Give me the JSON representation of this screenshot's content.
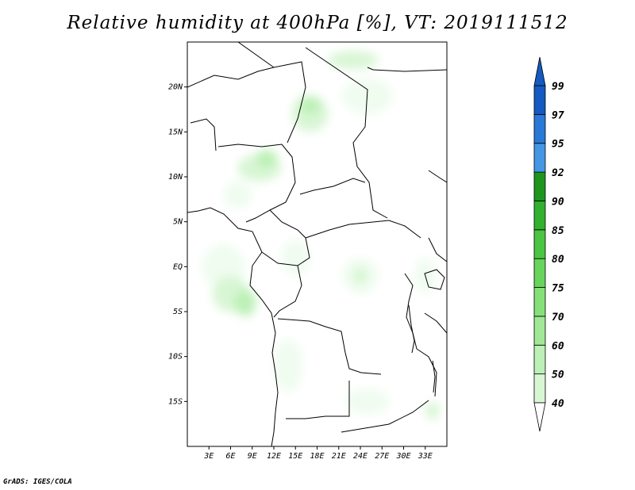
{
  "title": "Relative humidity at 400hPa [%], VT: 2019111512",
  "credit": "GrADS: IGES/COLA",
  "map": {
    "lon_range": [
      0,
      36
    ],
    "lat_range": [
      -20,
      25
    ],
    "lat_ticks": [
      {
        "value": 20,
        "label": "20N"
      },
      {
        "value": 15,
        "label": "15N"
      },
      {
        "value": 10,
        "label": "10N"
      },
      {
        "value": 5,
        "label": "5N"
      },
      {
        "value": 0,
        "label": "EQ"
      },
      {
        "value": -5,
        "label": "5S"
      },
      {
        "value": -10,
        "label": "10S"
      },
      {
        "value": -15,
        "label": "15S"
      }
    ],
    "lon_ticks": [
      {
        "value": 3,
        "label": "3E"
      },
      {
        "value": 6,
        "label": "6E"
      },
      {
        "value": 9,
        "label": "9E"
      },
      {
        "value": 12,
        "label": "12E"
      },
      {
        "value": 15,
        "label": "15E"
      },
      {
        "value": 18,
        "label": "18E"
      },
      {
        "value": 21,
        "label": "21E"
      },
      {
        "value": 24,
        "label": "24E"
      },
      {
        "value": 27,
        "label": "27E"
      },
      {
        "value": 30,
        "label": "30E"
      },
      {
        "value": 33,
        "label": "33E"
      }
    ]
  },
  "colorbar": {
    "levels": [
      "40",
      "50",
      "60",
      "70",
      "75",
      "80",
      "85",
      "90",
      "92",
      "95",
      "97",
      "99"
    ],
    "colors": [
      "#f0fcf0",
      "#d8f6d4",
      "#bcf0b6",
      "#a0e896",
      "#86e07a",
      "#68d45c",
      "#4cc444",
      "#32b030",
      "#1e961e",
      "#4696e6",
      "#2a78d8",
      "#145ac0"
    ]
  },
  "humidity_regions": [
    {
      "level": "40",
      "center_lon_lat": [
        5,
        0
      ],
      "extent_deg": [
        6,
        5
      ]
    },
    {
      "level": "50",
      "center_lon_lat": [
        6,
        -3
      ],
      "extent_deg": [
        5,
        4
      ]
    },
    {
      "level": "60",
      "center_lon_lat": [
        8,
        -4
      ],
      "extent_deg": [
        3,
        3
      ]
    },
    {
      "level": "50",
      "center_lon_lat": [
        10,
        11
      ],
      "extent_deg": [
        6,
        3
      ]
    },
    {
      "level": "60",
      "center_lon_lat": [
        11,
        12
      ],
      "extent_deg": [
        3,
        2
      ]
    },
    {
      "level": "50",
      "center_lon_lat": [
        17,
        17
      ],
      "extent_deg": [
        5,
        4
      ]
    },
    {
      "level": "60",
      "center_lon_lat": [
        17,
        18
      ],
      "extent_deg": [
        3,
        2
      ]
    },
    {
      "level": "50",
      "center_lon_lat": [
        23,
        23
      ],
      "extent_deg": [
        7,
        2
      ]
    },
    {
      "level": "40",
      "center_lon_lat": [
        25,
        19
      ],
      "extent_deg": [
        7,
        4
      ]
    },
    {
      "level": "40",
      "center_lon_lat": [
        24,
        -1
      ],
      "extent_deg": [
        5,
        4
      ]
    },
    {
      "level": "50",
      "center_lon_lat": [
        24,
        -1
      ],
      "extent_deg": [
        2,
        2
      ]
    },
    {
      "level": "40",
      "center_lon_lat": [
        14,
        -11
      ],
      "extent_deg": [
        4,
        6
      ]
    },
    {
      "level": "40",
      "center_lon_lat": [
        25,
        -15
      ],
      "extent_deg": [
        6,
        3
      ]
    },
    {
      "level": "40",
      "center_lon_lat": [
        33,
        -1
      ],
      "extent_deg": [
        3,
        4
      ]
    },
    {
      "level": "40",
      "center_lon_lat": [
        15,
        1
      ],
      "extent_deg": [
        4,
        4
      ]
    },
    {
      "level": "40",
      "center_lon_lat": [
        7,
        8
      ],
      "extent_deg": [
        4,
        3
      ]
    },
    {
      "level": "50",
      "center_lon_lat": [
        34,
        -16
      ],
      "extent_deg": [
        2,
        2
      ]
    }
  ]
}
